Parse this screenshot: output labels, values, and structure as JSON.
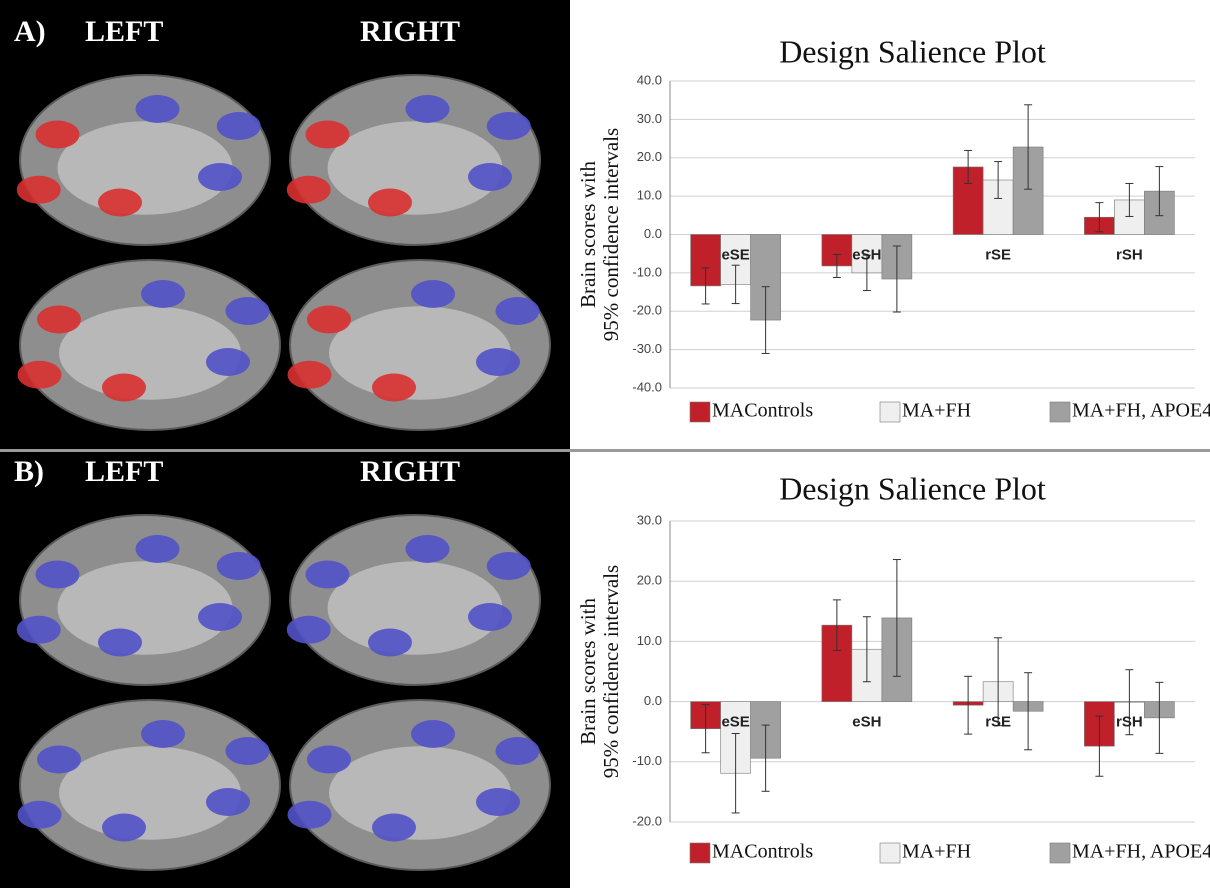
{
  "panels": [
    {
      "label": "A)",
      "left": "LEFT",
      "right": "RIGHT"
    },
    {
      "label": "B)",
      "left": "LEFT",
      "right": "RIGHT"
    }
  ],
  "chart_data": [
    {
      "type": "bar",
      "title": "Design Salience Plot",
      "y_label": [
        "Brain scores with",
        "95% confidence intervals"
      ],
      "categories": [
        "eSE",
        "eSH",
        "rSE",
        "rSH"
      ],
      "series": [
        {
          "name": "MAControls",
          "color": "#c0202a",
          "values": [
            -13.4,
            -8.2,
            17.6,
            4.5
          ],
          "errors": [
            4.7,
            3,
            4.3,
            3.8
          ]
        },
        {
          "name": "MA+FH",
          "color": "#efefef",
          "values": [
            -13,
            -10,
            14.2,
            9
          ],
          "errors": [
            5,
            4.6,
            4.8,
            4.3
          ]
        },
        {
          "name": "MA+FH, APOE4",
          "color": "#a0a0a0",
          "values": [
            -22.3,
            -11.6,
            22.8,
            11.3
          ],
          "errors": [
            8.7,
            8.6,
            11,
            6.4
          ]
        }
      ],
      "ylim": [
        -40,
        40
      ],
      "yticks": [
        {
          "value": -40,
          "label": "-40.0"
        },
        {
          "value": -30,
          "label": "-30.0"
        },
        {
          "value": -20,
          "label": "-20.0"
        },
        {
          "value": -10,
          "label": "-10.0"
        },
        {
          "value": 0,
          "label": "0.0"
        },
        {
          "value": 10,
          "label": "10.0"
        },
        {
          "value": 20,
          "label": "20.0"
        },
        {
          "value": 30,
          "label": "30.0"
        },
        {
          "value": 40,
          "label": "40.0"
        }
      ],
      "grid": true
    },
    {
      "type": "bar",
      "title": "Design Salience Plot",
      "y_label": [
        "Brain scores with",
        "95% confidence intervals"
      ],
      "categories": [
        "eSE",
        "eSH",
        "rSE",
        "rSH"
      ],
      "series": [
        {
          "name": "MAControls",
          "color": "#c0202a",
          "values": [
            -4.5,
            12.7,
            -0.6,
            -7.4
          ],
          "errors": [
            4,
            4.2,
            4.8,
            5
          ]
        },
        {
          "name": "MA+FH",
          "color": "#efefef",
          "values": [
            -11.9,
            8.7,
            3.3,
            -0.1
          ],
          "errors": [
            6.6,
            5.4,
            7.3,
            5.4
          ]
        },
        {
          "name": "MA+FH, APOE4",
          "color": "#a0a0a0",
          "values": [
            -9.4,
            13.9,
            -1.6,
            -2.7
          ],
          "errors": [
            5.5,
            9.7,
            6.4,
            5.9
          ]
        }
      ],
      "ylim": [
        -20,
        30
      ],
      "yticks": [
        {
          "value": -20,
          "label": "-20.0"
        },
        {
          "value": -10,
          "label": "-10.0"
        },
        {
          "value": 0,
          "label": "0.0"
        },
        {
          "value": 10,
          "label": "10.0"
        },
        {
          "value": 20,
          "label": "20.0"
        },
        {
          "value": 30,
          "label": "30.0"
        }
      ],
      "grid": true
    }
  ]
}
